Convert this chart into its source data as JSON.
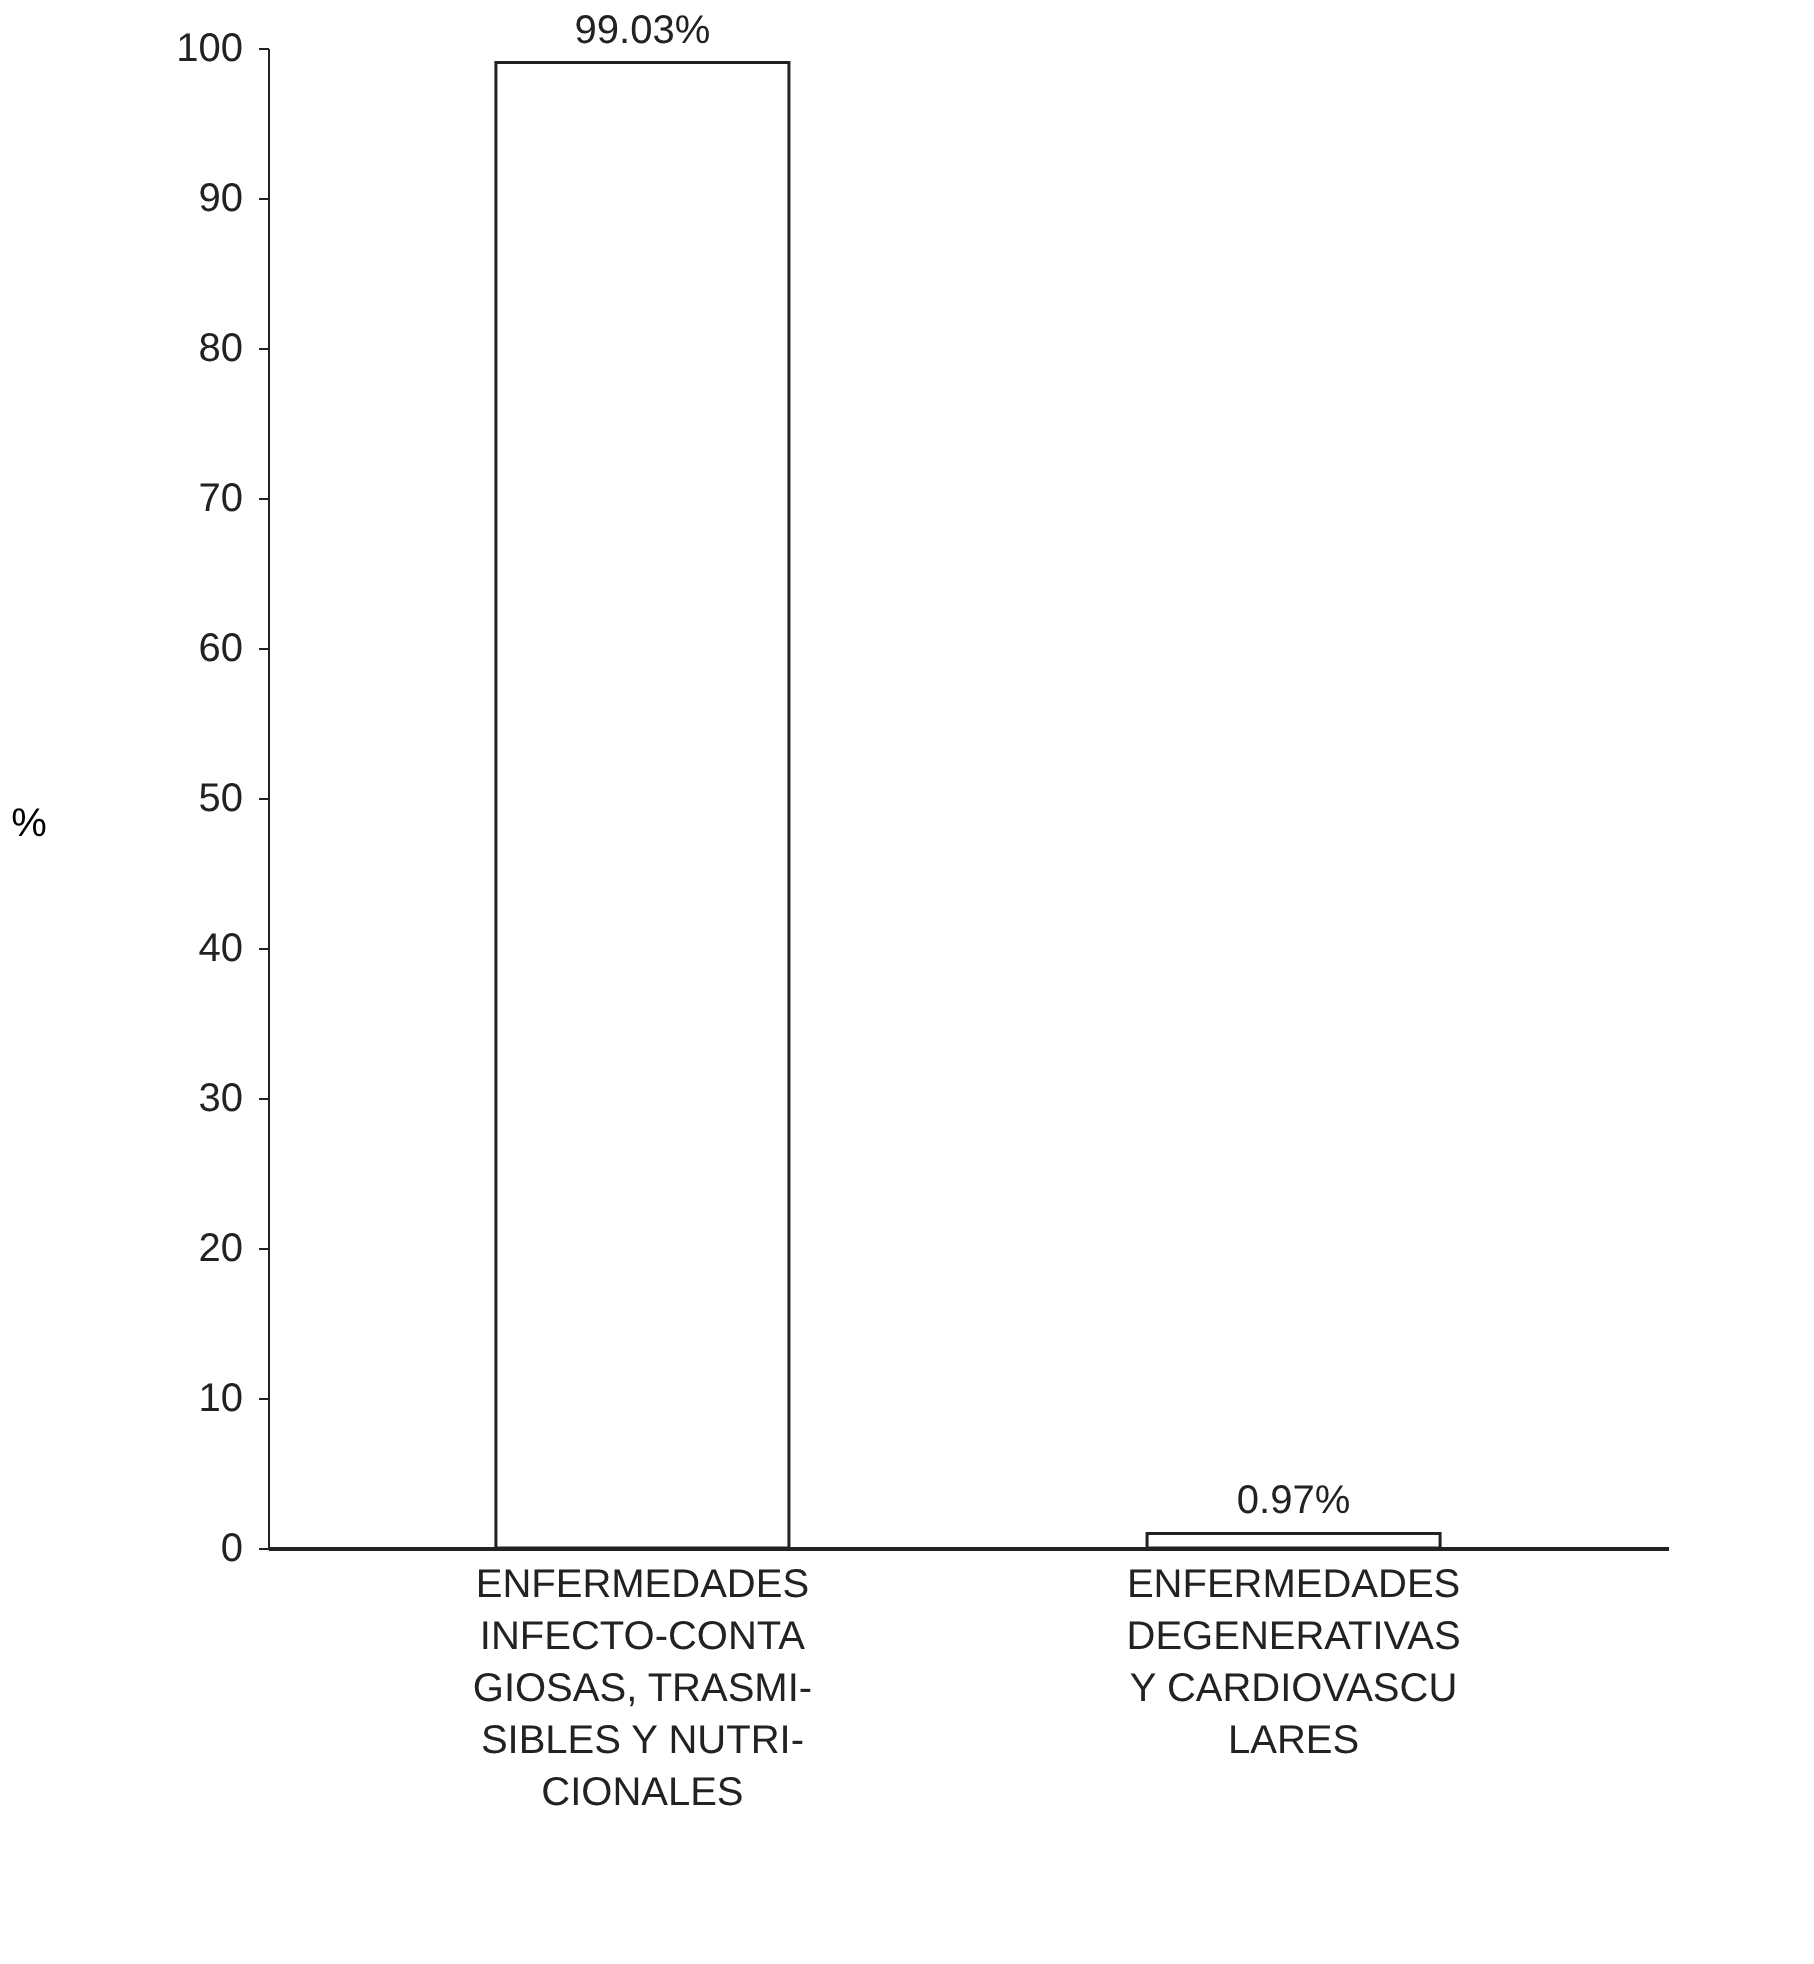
{
  "chart_data": {
    "type": "bar",
    "categories": [
      "ENFERMEDADES\nINFECTO-CONTA\nGIOSAS, TRASMI-\nSIBLES Y  NUTRI-\nCIONALES",
      "ENFERMEDADES\nDEGENERATIVAS\nY CARDIOVASCU\nLARES"
    ],
    "values": [
      99.03,
      0.97
    ],
    "value_labels": [
      "99.03%",
      "0.97%"
    ],
    "color": "#ffffff",
    "ylabel": "%",
    "ylim": [
      0,
      100
    ],
    "yticks": [
      0,
      10,
      20,
      30,
      40,
      50,
      60,
      70,
      80,
      90,
      100
    ],
    "grid": false
  }
}
